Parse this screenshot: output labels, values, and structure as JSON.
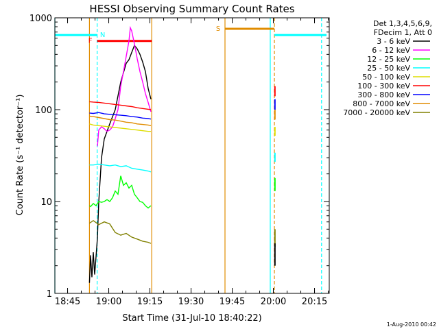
{
  "chart_data": {
    "type": "line",
    "title": "HESSI Observing Summary Count Rates",
    "xlabel": "Start Time (31-Jul-10 18:40:22)",
    "ylabel": "Count Rate (s⁻¹ detector⁻¹)",
    "y_scale": "log",
    "ylim": [
      1,
      1000
    ],
    "xlim_minutes": [
      0,
      100
    ],
    "x_ticks": [
      "18:45",
      "19:00",
      "19:15",
      "19:30",
      "19:45",
      "20:00",
      "20:15"
    ],
    "y_ticks": [
      "1",
      "10",
      "100",
      "1000"
    ],
    "legend_header": [
      "Det 1,3,4,5,6,9,",
      "FDecim 1, Att 0"
    ],
    "legend_position": "top-right",
    "timestamp": "1-Aug-2010 00:42",
    "series": [
      {
        "name": "3 - 6 keV",
        "color": "#000000",
        "points": [
          [
            12.6,
            1.3
          ],
          [
            13.0,
            2.6
          ],
          [
            13.5,
            1.5
          ],
          [
            14.0,
            2.8
          ],
          [
            14.5,
            1.6
          ],
          [
            15.0,
            2.5
          ],
          [
            15.5,
            4
          ],
          [
            16,
            10
          ],
          [
            17,
            30
          ],
          [
            18,
            48
          ],
          [
            20,
            70
          ],
          [
            22,
            100
          ],
          [
            24,
            200
          ],
          [
            26,
            320
          ],
          [
            27,
            350
          ],
          [
            28,
            420
          ],
          [
            29,
            500
          ],
          [
            30,
            460
          ],
          [
            31,
            400
          ],
          [
            32,
            330
          ],
          [
            33,
            260
          ],
          [
            34,
            170
          ],
          [
            35,
            130
          ]
        ]
      },
      {
        "name": "6 - 12 keV",
        "color": "#ff00ff",
        "points": [
          [
            15.5,
            40
          ],
          [
            16,
            60
          ],
          [
            17,
            65
          ],
          [
            18,
            62
          ],
          [
            19,
            58
          ],
          [
            20,
            60
          ],
          [
            21,
            65
          ],
          [
            22,
            80
          ],
          [
            23,
            100
          ],
          [
            24,
            180
          ],
          [
            25,
            260
          ],
          [
            26,
            380
          ],
          [
            27,
            560
          ],
          [
            27.5,
            780
          ],
          [
            28,
            720
          ],
          [
            29,
            520
          ],
          [
            30,
            360
          ],
          [
            31,
            260
          ],
          [
            32,
            200
          ],
          [
            33,
            150
          ],
          [
            34,
            120
          ],
          [
            35,
            95
          ]
        ]
      },
      {
        "name": "12 - 25 keV",
        "color": "#00ff00",
        "points": [
          [
            12.6,
            9
          ],
          [
            13,
            8.8
          ],
          [
            14,
            9.5
          ],
          [
            15,
            9
          ],
          [
            16,
            10
          ],
          [
            17,
            9.8
          ],
          [
            18,
            10
          ],
          [
            19,
            10.5
          ],
          [
            20,
            10
          ],
          [
            21,
            11
          ],
          [
            22,
            13
          ],
          [
            23,
            12
          ],
          [
            24,
            19
          ],
          [
            25,
            15
          ],
          [
            26,
            16
          ],
          [
            27,
            14
          ],
          [
            28,
            15
          ],
          [
            29,
            12
          ],
          [
            30,
            11
          ],
          [
            31,
            10
          ],
          [
            32,
            9.8
          ],
          [
            33,
            9
          ],
          [
            34,
            8.5
          ],
          [
            35,
            9
          ]
        ]
      },
      {
        "name": "25 - 50 keV",
        "color": "#00ffff",
        "points": [
          [
            12.6,
            25
          ],
          [
            14,
            25
          ],
          [
            16,
            25.5
          ],
          [
            18,
            25
          ],
          [
            20,
            24.5
          ],
          [
            22,
            25
          ],
          [
            24,
            24
          ],
          [
            26,
            24.5
          ],
          [
            28,
            23
          ],
          [
            30,
            22.5
          ],
          [
            32,
            22
          ],
          [
            34,
            21.5
          ],
          [
            35,
            21
          ]
        ]
      },
      {
        "name": "50 - 100 keV",
        "color": "#dddd00",
        "points": [
          [
            12.6,
            70
          ],
          [
            14,
            68
          ],
          [
            16,
            67
          ],
          [
            18,
            66
          ],
          [
            20,
            65
          ],
          [
            22,
            64
          ],
          [
            24,
            63
          ],
          [
            26,
            62
          ],
          [
            28,
            61
          ],
          [
            30,
            60
          ],
          [
            32,
            59
          ],
          [
            34,
            58
          ],
          [
            35,
            58
          ]
        ]
      },
      {
        "name": "100 - 300 keV",
        "color": "#ff0000",
        "points": [
          [
            12.6,
            122
          ],
          [
            14,
            121
          ],
          [
            16,
            120
          ],
          [
            18,
            118
          ],
          [
            20,
            116
          ],
          [
            22,
            114
          ],
          [
            24,
            112
          ],
          [
            26,
            110
          ],
          [
            28,
            108
          ],
          [
            30,
            105
          ],
          [
            32,
            103
          ],
          [
            34,
            101
          ],
          [
            35,
            100
          ]
        ]
      },
      {
        "name": "300 - 800 keV",
        "color": "#0000ff",
        "points": [
          [
            12.6,
            92
          ],
          [
            14,
            91
          ],
          [
            16,
            93
          ],
          [
            18,
            90
          ],
          [
            20,
            89
          ],
          [
            22,
            88
          ],
          [
            24,
            87
          ],
          [
            26,
            86
          ],
          [
            28,
            84
          ],
          [
            30,
            83
          ],
          [
            32,
            81
          ],
          [
            34,
            80
          ],
          [
            35,
            79
          ]
        ]
      },
      {
        "name": "800 - 7000 keV",
        "color": "#e08c00",
        "points": [
          [
            12.6,
            85
          ],
          [
            14,
            84
          ],
          [
            16,
            82
          ],
          [
            18,
            80
          ],
          [
            20,
            78
          ],
          [
            22,
            77
          ],
          [
            24,
            75
          ],
          [
            26,
            73
          ],
          [
            28,
            72
          ],
          [
            30,
            70
          ],
          [
            32,
            69
          ],
          [
            34,
            68
          ],
          [
            35,
            67
          ]
        ]
      },
      {
        "name": "7000 - 20000 keV",
        "color": "#808000",
        "points": [
          [
            12.6,
            5.8
          ],
          [
            14,
            6.2
          ],
          [
            16,
            5.6
          ],
          [
            18,
            6.0
          ],
          [
            20,
            5.7
          ],
          [
            22,
            4.6
          ],
          [
            24,
            4.3
          ],
          [
            26,
            4.5
          ],
          [
            28,
            4.1
          ],
          [
            30,
            3.9
          ],
          [
            32,
            3.7
          ],
          [
            34,
            3.6
          ],
          [
            35,
            3.5
          ]
        ]
      }
    ],
    "late_segments": [
      {
        "color": "#ff0000",
        "y": [
          140,
          180
        ]
      },
      {
        "color": "#0000ff",
        "y": [
          100,
          130
        ]
      },
      {
        "color": "#e08c00",
        "y": [
          78,
          100
        ]
      },
      {
        "color": "#dddd00",
        "y": [
          52,
          65
        ]
      },
      {
        "color": "#00ffff",
        "y": [
          27,
          34
        ]
      },
      {
        "color": "#00ff00",
        "y": [
          13,
          18
        ]
      },
      {
        "color": "#808000",
        "y": [
          3.2,
          5.0
        ]
      },
      {
        "color": "#000000",
        "y": [
          2.0,
          3.5
        ]
      }
    ],
    "late_segments_minute": 80.2,
    "flags": [
      {
        "label": "N",
        "color": "#00ffff",
        "y": 650,
        "segments": [
          [
            0,
            15.4
          ],
          [
            80.0,
            99
          ]
        ]
      },
      {
        "label": "F",
        "color": "#ff0000",
        "y": 560,
        "segments": [
          [
            15.4,
            35.3
          ]
        ]
      },
      {
        "label": "S",
        "color": "#e08c00",
        "y": 760,
        "segments": [
          [
            62.0,
            80.0
          ]
        ]
      }
    ],
    "vlines": [
      {
        "minute": 0.0,
        "color": "#00ffff",
        "style": "solid"
      },
      {
        "minute": 12.6,
        "color": "#e08c00",
        "style": "solid"
      },
      {
        "minute": 15.4,
        "color": "#00ffff",
        "style": "dashed"
      },
      {
        "minute": 35.3,
        "color": "#e08c00",
        "style": "solid"
      },
      {
        "minute": 62.0,
        "color": "#e08c00",
        "style": "solid"
      },
      {
        "minute": 78.5,
        "color": "#00ffff",
        "style": "solid"
      },
      {
        "minute": 80.0,
        "color": "#e08c00",
        "style": "dashed"
      },
      {
        "minute": 97.2,
        "color": "#00ffff",
        "style": "dashed"
      }
    ]
  }
}
